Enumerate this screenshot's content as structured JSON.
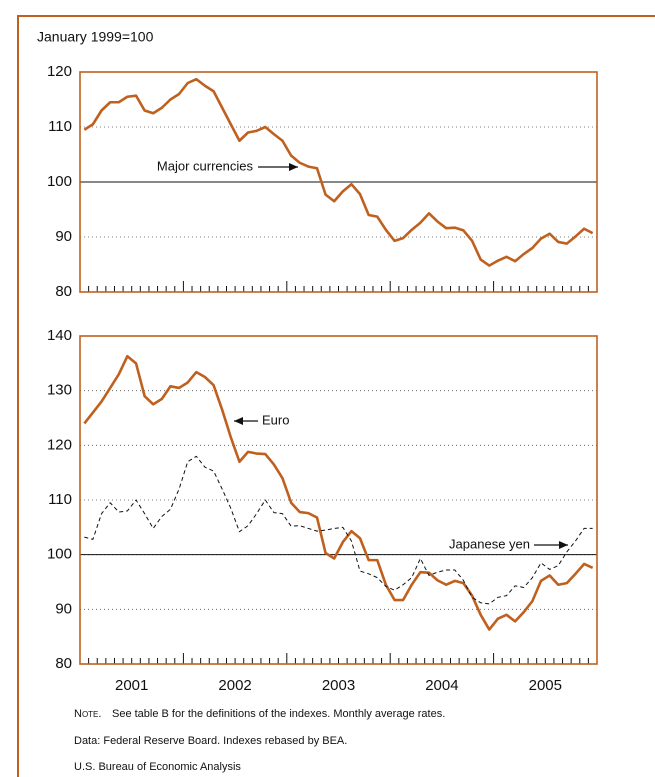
{
  "chart_data": [
    {
      "type": "line",
      "ylabel": "January 1999=100",
      "x": [
        2001.042,
        2001.125,
        2001.208,
        2001.292,
        2001.375,
        2001.458,
        2001.542,
        2001.625,
        2001.708,
        2001.792,
        2001.875,
        2001.958,
        2002.042,
        2002.125,
        2002.208,
        2002.292,
        2002.375,
        2002.458,
        2002.542,
        2002.625,
        2002.708,
        2002.792,
        2002.875,
        2002.958,
        2003.042,
        2003.125,
        2003.208,
        2003.292,
        2003.375,
        2003.458,
        2003.542,
        2003.625,
        2003.708,
        2003.792,
        2003.875,
        2003.958,
        2004.042,
        2004.125,
        2004.208,
        2004.292,
        2004.375,
        2004.458,
        2004.542,
        2004.625,
        2004.708,
        2004.792,
        2004.875,
        2004.958,
        2005.042,
        2005.125,
        2005.208,
        2005.292,
        2005.375,
        2005.458,
        2005.542,
        2005.625,
        2005.708,
        2005.792,
        2005.875,
        2005.958
      ],
      "series": [
        {
          "name": "Major currencies",
          "color": "#c0601f",
          "dashed": false,
          "values": [
            109.5,
            110.5,
            113,
            114.5,
            114.5,
            115.5,
            115.7,
            113,
            112.5,
            113.5,
            115,
            116,
            118,
            118.7,
            117.5,
            116.5,
            113.5,
            110.5,
            107.5,
            109,
            109.3,
            110,
            108.7,
            107.5,
            104.8,
            103.5,
            102.8,
            102.5,
            97.7,
            96.5,
            98.3,
            99.6,
            97.8,
            94,
            93.7,
            91.3,
            89.3,
            89.8,
            91.3,
            92.6,
            94.3,
            92.8,
            91.6,
            91.7,
            91.2,
            89.3,
            85.9,
            84.8,
            85.7,
            86.4,
            85.6,
            86.9,
            88,
            89.7,
            90.6,
            89.1,
            88.8,
            90.1,
            91.5,
            90.7
          ]
        }
      ],
      "xlim": [
        2001,
        2006
      ],
      "xticks_major": [
        2001,
        2002,
        2003,
        2004,
        2005,
        2006
      ],
      "ylim": [
        80,
        120
      ],
      "yticks": [
        80,
        90,
        100,
        110,
        120
      ],
      "grid": true,
      "reference_line": 100
    },
    {
      "type": "line",
      "x": [
        2001.042,
        2001.125,
        2001.208,
        2001.292,
        2001.375,
        2001.458,
        2001.542,
        2001.625,
        2001.708,
        2001.792,
        2001.875,
        2001.958,
        2002.042,
        2002.125,
        2002.208,
        2002.292,
        2002.375,
        2002.458,
        2002.542,
        2002.625,
        2002.708,
        2002.792,
        2002.875,
        2002.958,
        2003.042,
        2003.125,
        2003.208,
        2003.292,
        2003.375,
        2003.458,
        2003.542,
        2003.625,
        2003.708,
        2003.792,
        2003.875,
        2003.958,
        2004.042,
        2004.125,
        2004.208,
        2004.292,
        2004.375,
        2004.458,
        2004.542,
        2004.625,
        2004.708,
        2004.792,
        2004.875,
        2004.958,
        2005.042,
        2005.125,
        2005.208,
        2005.292,
        2005.375,
        2005.458,
        2005.542,
        2005.625,
        2005.708,
        2005.792,
        2005.875,
        2005.958
      ],
      "series": [
        {
          "name": "Euro",
          "color": "#c0601f",
          "dashed": false,
          "values": [
            124,
            126,
            128,
            130.5,
            133,
            136.3,
            135,
            129,
            127.5,
            128.5,
            130.8,
            130.5,
            131.5,
            133.4,
            132.5,
            131,
            126.5,
            121.5,
            117,
            118.8,
            118.5,
            118.4,
            116.5,
            114,
            109.5,
            107.8,
            107.6,
            106.8,
            100.3,
            99.3,
            102.3,
            104.3,
            103,
            99,
            99,
            94.5,
            91.7,
            91.7,
            94.5,
            96.8,
            96.7,
            95.3,
            94.5,
            95.2,
            94.8,
            92.5,
            89,
            86.3,
            88.3,
            89,
            87.8,
            89.5,
            91.5,
            95.2,
            96.2,
            94.5,
            94.8,
            96.5,
            98.3,
            97.6
          ]
        },
        {
          "name": "Japanese yen",
          "color": "#111111",
          "dashed": true,
          "values": [
            103.2,
            102.8,
            107.5,
            109.5,
            107.8,
            108,
            110,
            107.5,
            104.8,
            107,
            108.3,
            112,
            117,
            118,
            116,
            115.3,
            112,
            108.5,
            104.2,
            105.3,
            107.5,
            110,
            107.7,
            107.5,
            105.2,
            105.3,
            104.8,
            104.3,
            104.5,
            104.8,
            105,
            102.5,
            97,
            96.5,
            95.8,
            94.2,
            93.5,
            94.5,
            95.8,
            99.3,
            96.2,
            96.8,
            97.2,
            97.2,
            95.3,
            92.2,
            91.2,
            91,
            92.2,
            92.5,
            94.3,
            94,
            95.8,
            98.5,
            97.3,
            98,
            100.5,
            102.5,
            104.8,
            104.8
          ]
        }
      ],
      "xlim": [
        2001,
        2006
      ],
      "xticks_major": [
        2001,
        2002,
        2003,
        2004,
        2005,
        2006
      ],
      "xticks": [
        {
          "value": 2001.5,
          "label": "2001"
        },
        {
          "value": 2002.5,
          "label": "2002"
        },
        {
          "value": 2003.5,
          "label": "2003"
        },
        {
          "value": 2004.5,
          "label": "2004"
        },
        {
          "value": 2005.5,
          "label": "2005"
        }
      ],
      "ylim": [
        80,
        140
      ],
      "yticks": [
        80,
        90,
        100,
        110,
        120,
        130,
        140
      ],
      "grid": true,
      "reference_line": 100
    }
  ],
  "notes": {
    "label": "Note.",
    "text": "See table B for the definitions of the indexes. Monthly average rates.",
    "source": "Data: Federal Reserve Board. Indexes rebased by BEA.",
    "credit": "U.S. Bureau of Economic Analysis"
  }
}
